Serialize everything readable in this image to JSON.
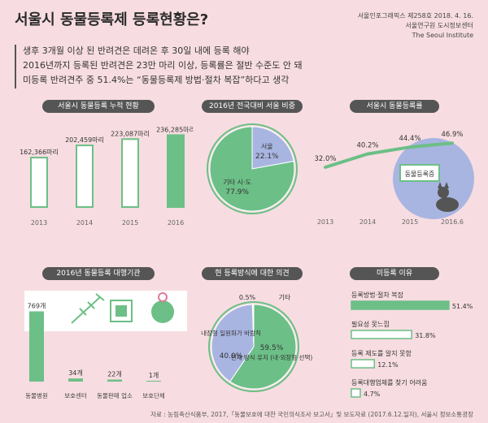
{
  "header": {
    "title": "서울시 동물등록제 등록현황은?",
    "meta_line1": "서울인포그래픽스 제258호 2018. 4. 16.",
    "meta_line2": "서울연구원 도시정보센터",
    "meta_line3": "The Seoul Institute"
  },
  "intro": [
    "생후 3개월 이상 된 반려견은 데려온 후 30일 내에 등록 해야",
    "2016년까지 등록된 반려견은 23만 마리 이상, 등록률은 절반 수준도 안 돼",
    "미등록 반려견주 중 51.4%는 “동물등록제 방법·절차 복잡”하다고 생각"
  ],
  "panels": {
    "cumulative": "서울시 동물등록 누적 현황",
    "ratio": "2016년 전국대비 서울 비중",
    "rate": "서울시 동물등록률",
    "agency": "2016년 동물등록 대행기관",
    "opinion": "현 등록방식에 대한 의견",
    "reasons": "미등록 이유"
  },
  "colors": {
    "green": "#6cbf86",
    "purple": "#a9b5e1",
    "dark": "#555555",
    "bg": "#f7dde1"
  },
  "rate_badge": "동물등록증",
  "chart_data": [
    {
      "type": "bar",
      "title": "서울시 동물등록 누적 현황",
      "categories": [
        "2013",
        "2014",
        "2015",
        "2016"
      ],
      "values": [
        162366,
        202459,
        223087,
        236285
      ],
      "labels": [
        "162,366마리",
        "202,459마리",
        "223,087마리",
        "236,285마리"
      ],
      "highlight_index": 3
    },
    {
      "type": "pie",
      "title": "2016년 전국대비 서울 비중",
      "slices": [
        {
          "name": "서울",
          "value": 22.1,
          "label": "22.1%"
        },
        {
          "name": "기타 시·도",
          "value": 77.9,
          "label": "77.9%"
        }
      ]
    },
    {
      "type": "line",
      "title": "서울시 동물등록률",
      "x": [
        "2013",
        "2014",
        "2015",
        "2016.6"
      ],
      "values": [
        32.0,
        40.2,
        44.4,
        46.9
      ],
      "labels": [
        "32.0%",
        "40.2%",
        "44.4%",
        "46.9%"
      ],
      "ylim": [
        0,
        100
      ]
    },
    {
      "type": "bar",
      "title": "2016년 동물등록 대행기관",
      "categories": [
        "동물병원",
        "보호센터",
        "동물판매 업소",
        "보호단체"
      ],
      "values": [
        769,
        34,
        22,
        1
      ],
      "labels": [
        "769개",
        "34개",
        "22개",
        "1개"
      ]
    },
    {
      "type": "pie",
      "title": "현 등록방식에 대한 의견",
      "slices": [
        {
          "name": "현재 방식 유지 (내·외장형 선택)",
          "value": 59.5,
          "label": "59.5%"
        },
        {
          "name": "내장형 일원화가 바람직",
          "value": 40.0,
          "label": "40.0%"
        },
        {
          "name": "기타",
          "value": 0.5,
          "label": "0.5%"
        }
      ]
    },
    {
      "type": "bar",
      "title": "미등록 이유",
      "categories": [
        "등록방법·절차 복잡",
        "필요성 못느낌",
        "등록 제도를 알지 못함",
        "등록대행업체를 찾기 어려움"
      ],
      "values": [
        51.4,
        31.8,
        12.1,
        4.7
      ],
      "labels": [
        "51.4%",
        "31.8%",
        "12.1%",
        "4.7%"
      ],
      "xlim": [
        0,
        60
      ]
    }
  ],
  "source": "자료 : 농림축산식품부, 2017,「동물보호에 대한 국민의식조사 보고서」및 보도자료 (2017.6.12.일자), 서울시 정보소통광장"
}
